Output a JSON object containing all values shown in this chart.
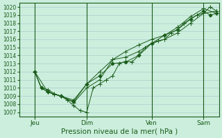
{
  "title": "",
  "xlabel": "Pression niveau de la mer( hPa )",
  "bg_color": "#cceedd",
  "line_color": "#1a5c1a",
  "grid_color": "#aacccc",
  "ylim": [
    1006.5,
    1020.5
  ],
  "yticks": [
    1007,
    1008,
    1009,
    1010,
    1011,
    1012,
    1013,
    1014,
    1015,
    1016,
    1017,
    1018,
    1019,
    1020
  ],
  "xlim": [
    -0.2,
    15.2
  ],
  "xtick_positions": [
    1,
    5,
    10,
    14
  ],
  "xtick_labels": [
    "Jeu",
    "Dim",
    "Ven",
    "Sam"
  ],
  "vlines": [
    1,
    5,
    10,
    14
  ],
  "series": [
    {
      "x": [
        1,
        1.5,
        2,
        2.5,
        3,
        3.5,
        4,
        4.5,
        5,
        5.5,
        6,
        6.5,
        7,
        7.5,
        8,
        8.5,
        9,
        9.5,
        10,
        10.5,
        11,
        11.5,
        12,
        12.5,
        13,
        13.5,
        14,
        14.5,
        15
      ],
      "y": [
        1012,
        1010,
        1009.5,
        1009.2,
        1009,
        1008.5,
        1007.8,
        1007.2,
        1007,
        1010,
        1010.5,
        1011,
        1011.5,
        1013,
        1013.3,
        1013.2,
        1014,
        1015,
        1015.5,
        1015.8,
        1016,
        1016.8,
        1017.2,
        1018,
        1018.5,
        1019,
        1019.2,
        1020,
        1019.5
      ]
    },
    {
      "x": [
        1,
        2,
        3,
        4,
        5,
        6,
        7,
        8,
        9,
        10,
        11,
        12,
        13,
        14,
        15
      ],
      "y": [
        1012,
        1009.5,
        1009,
        1008.2,
        1010,
        1011,
        1013.5,
        1013.8,
        1014.5,
        1015.5,
        1016,
        1016.8,
        1018,
        1019.2,
        1019.5
      ]
    },
    {
      "x": [
        1,
        1.5,
        2,
        3,
        4,
        5,
        6,
        7,
        8,
        9,
        10,
        11,
        12,
        13,
        14,
        14.5,
        15
      ],
      "y": [
        1012,
        1010,
        1009.5,
        1009,
        1008.3,
        1010.5,
        1011.5,
        1013,
        1013.2,
        1014,
        1015.5,
        1016.5,
        1017.2,
        1018.5,
        1019.5,
        1019.0,
        1019.2
      ]
    },
    {
      "x": [
        1,
        1.5,
        2,
        2.5,
        3,
        4,
        5,
        6,
        7,
        8,
        9,
        10,
        11,
        12,
        13,
        14,
        15
      ],
      "y": [
        1012,
        1010,
        1009.8,
        1009.3,
        1009,
        1008.5,
        1010.5,
        1012,
        1013.5,
        1014.5,
        1015.3,
        1016,
        1016.5,
        1017.5,
        1018.8,
        1019.8,
        1019.2
      ]
    }
  ]
}
